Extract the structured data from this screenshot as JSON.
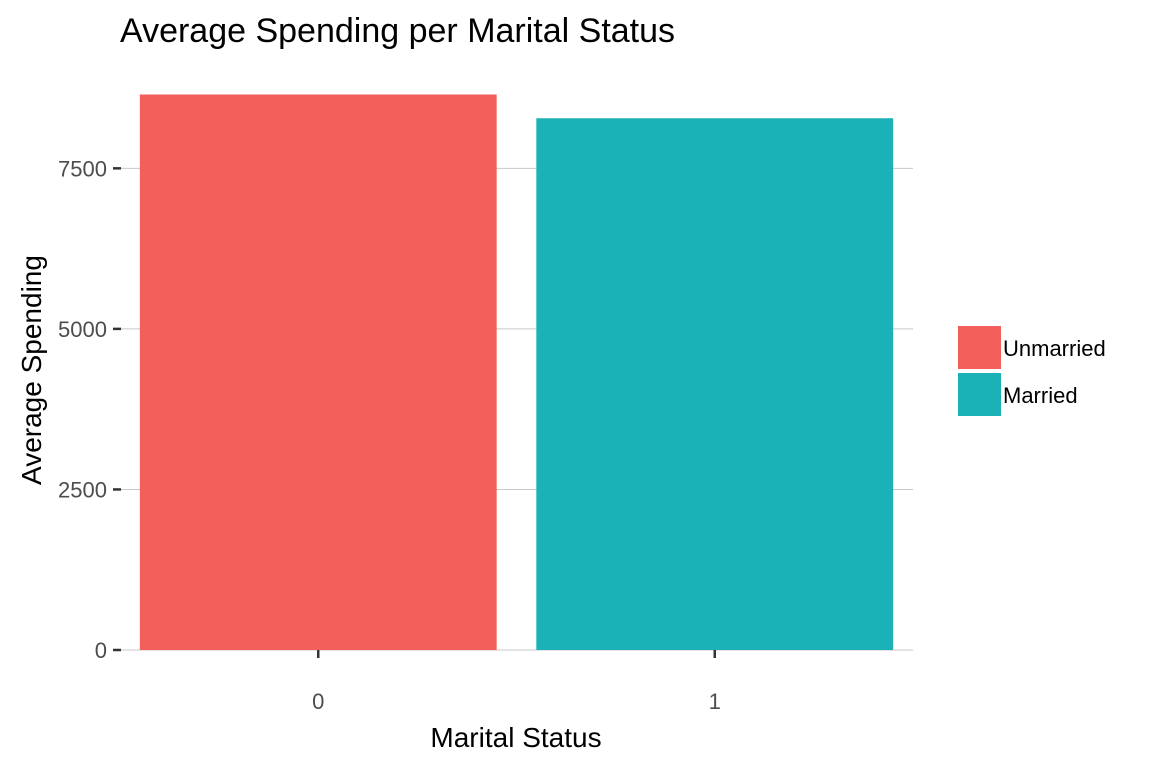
{
  "chart_data": {
    "type": "bar",
    "title": "Average Spending per Marital Status",
    "xlabel": "Marital Status",
    "ylabel": "Average Spending",
    "categories": [
      "0",
      "1"
    ],
    "values": [
      8650,
      8280
    ],
    "ylim": [
      0,
      9000
    ],
    "yticks": [
      0,
      2500,
      5000,
      7500
    ],
    "grid": true,
    "legend_position": "right",
    "legend": [
      {
        "label": "Unmarried",
        "color": "#F3605B"
      },
      {
        "label": "Married",
        "color": "#1BB2B7"
      }
    ],
    "bar_colors": [
      "#F3605B",
      "#1BB2B7"
    ]
  }
}
